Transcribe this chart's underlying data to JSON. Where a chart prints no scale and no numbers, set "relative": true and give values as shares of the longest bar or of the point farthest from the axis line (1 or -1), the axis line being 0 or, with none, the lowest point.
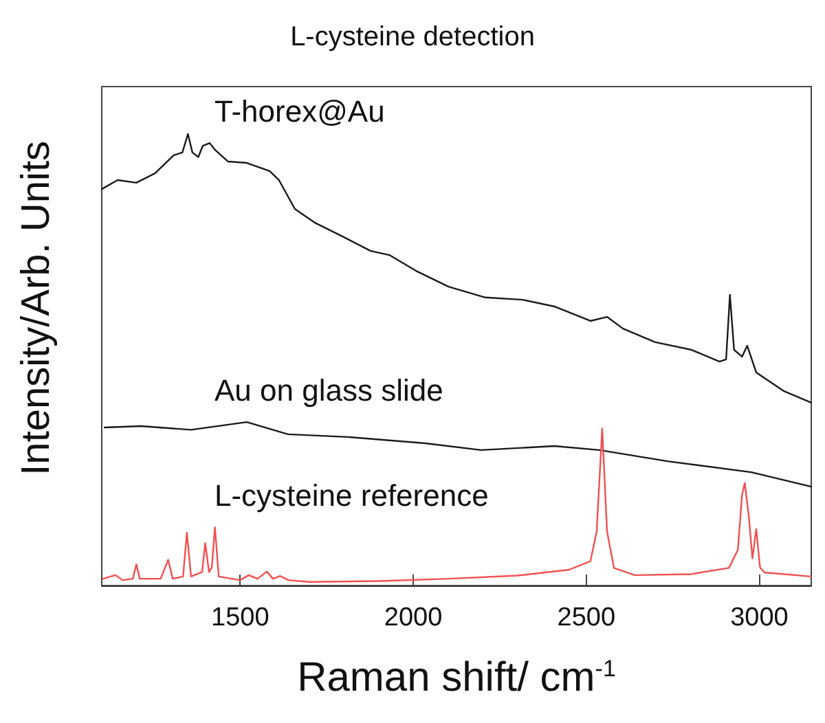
{
  "chart_data": {
    "type": "line",
    "title": "L-cysteine detection",
    "xlabel": "Raman shift/ cm$^{-1}$",
    "ylabel": "Intensity/Arb. Units",
    "relative": true,
    "xlim": [
      1100,
      3150
    ],
    "xticks": [
      1500,
      2000,
      2500,
      3000
    ],
    "grid": false,
    "legend": false,
    "marker": "none",
    "line_style": "solid",
    "series": [
      {
        "name": "T-horex@Au",
        "color": "#1a1a1a",
        "x": [
          1100,
          1146,
          1200,
          1254,
          1308,
          1333,
          1349,
          1362,
          1379,
          1392,
          1412,
          1427,
          1465,
          1519,
          1585,
          1612,
          1658,
          1717,
          1796,
          1877,
          1931,
          2008,
          2102,
          2208,
          2315,
          2408,
          2512,
          2560,
          2606,
          2699,
          2804,
          2885,
          2904,
          2915,
          2927,
          2950,
          2965,
          2991,
          3070,
          3150
        ],
        "values": [
          0.878,
          0.898,
          0.892,
          0.913,
          0.953,
          0.959,
          1,
          0.959,
          0.949,
          0.974,
          0.98,
          0.965,
          0.939,
          0.936,
          0.918,
          0.898,
          0.834,
          0.803,
          0.773,
          0.741,
          0.732,
          0.697,
          0.662,
          0.638,
          0.633,
          0.618,
          0.586,
          0.595,
          0.569,
          0.539,
          0.522,
          0.496,
          0.501,
          0.644,
          0.522,
          0.507,
          0.531,
          0.472,
          0.431,
          0.405
        ]
      },
      {
        "name": "Au on glass slide",
        "color": "#1a1a1a",
        "x": [
          1108,
          1213,
          1358,
          1519,
          1638,
          1812,
          2035,
          2196,
          2408,
          2538,
          2738,
          2977,
          3150
        ],
        "values": [
          0.35,
          0.353,
          0.345,
          0.362,
          0.335,
          0.329,
          0.315,
          0.3,
          0.309,
          0.3,
          0.275,
          0.251,
          0.219
        ]
      },
      {
        "name": "L-cysteine reference",
        "color": "#f05050",
        "x": [
          1104,
          1125,
          1140,
          1160,
          1190,
          1200,
          1210,
          1270,
          1292,
          1305,
          1335,
          1346,
          1358,
          1390,
          1399,
          1410,
          1418,
          1427,
          1438,
          1500,
          1525,
          1550,
          1577,
          1595,
          1615,
          1640,
          1700,
          1900,
          2100,
          2300,
          2450,
          2512,
          2530,
          2546,
          2560,
          2580,
          2640,
          2800,
          2912,
          2938,
          2950,
          2958,
          2970,
          2980,
          2991,
          3002,
          3015,
          3150
        ],
        "values": [
          0.015,
          0.02,
          0.023,
          0.012,
          0.015,
          0.047,
          0.015,
          0.015,
          0.057,
          0.015,
          0.02,
          0.117,
          0.02,
          0.03,
          0.094,
          0.03,
          0.04,
          0.129,
          0.02,
          0.012,
          0.023,
          0.015,
          0.031,
          0.015,
          0.021,
          0.012,
          0.008,
          0.01,
          0.015,
          0.022,
          0.035,
          0.054,
          0.12,
          0.348,
          0.12,
          0.039,
          0.023,
          0.025,
          0.039,
          0.079,
          0.2,
          0.227,
          0.15,
          0.06,
          0.125,
          0.04,
          0.029,
          0.02
        ]
      }
    ]
  }
}
